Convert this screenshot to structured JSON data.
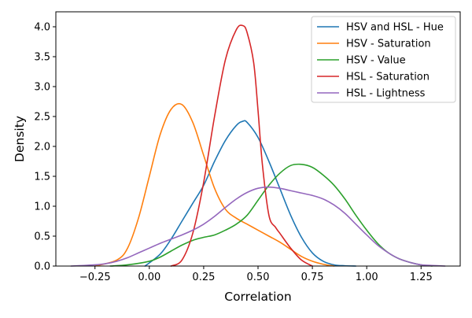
{
  "chart_data": {
    "type": "line",
    "xlabel": "Correlation",
    "ylabel": "Density",
    "xlim": [
      -0.43,
      1.43
    ],
    "ylim": [
      0,
      4.25
    ],
    "xticks": [
      "−0.25",
      "0.00",
      "0.25",
      "0.50",
      "0.75",
      "1.00",
      "1.25"
    ],
    "xtick_values": [
      -0.25,
      0,
      0.25,
      0.5,
      0.75,
      1.0,
      1.25
    ],
    "yticks": [
      "0.0",
      "0.5",
      "1.0",
      "1.5",
      "2.0",
      "2.5",
      "3.0",
      "3.5",
      "4.0"
    ],
    "ytick_values": [
      0,
      0.5,
      1,
      1.5,
      2,
      2.5,
      3,
      3.5,
      4
    ],
    "grid": false,
    "legend_position": "top-right",
    "series": [
      {
        "name": "HSV and HSL - Hue",
        "color": "#1f77b4",
        "x": [
          -0.02,
          0.05,
          0.1,
          0.15,
          0.2,
          0.25,
          0.3,
          0.35,
          0.4,
          0.43,
          0.45,
          0.5,
          0.55,
          0.6,
          0.65,
          0.7,
          0.75,
          0.8,
          0.85,
          0.9,
          0.95
        ],
        "y": [
          0.0,
          0.2,
          0.45,
          0.75,
          1.05,
          1.35,
          1.75,
          2.1,
          2.35,
          2.42,
          2.4,
          2.15,
          1.75,
          1.3,
          0.85,
          0.48,
          0.22,
          0.08,
          0.02,
          0.005,
          0.0
        ]
      },
      {
        "name": "HSV - Saturation",
        "color": "#ff7f0e",
        "x": [
          -0.25,
          -0.15,
          -0.1,
          -0.05,
          0.0,
          0.05,
          0.1,
          0.15,
          0.2,
          0.25,
          0.3,
          0.35,
          0.4,
          0.45,
          0.5,
          0.55,
          0.6,
          0.65,
          0.7,
          0.75,
          0.8,
          0.85
        ],
        "y": [
          0.0,
          0.1,
          0.3,
          0.8,
          1.5,
          2.2,
          2.62,
          2.7,
          2.4,
          1.85,
          1.3,
          0.95,
          0.8,
          0.7,
          0.6,
          0.5,
          0.4,
          0.28,
          0.16,
          0.08,
          0.03,
          0.0
        ]
      },
      {
        "name": "HSV - Value",
        "color": "#2ca02c",
        "x": [
          -0.18,
          -0.1,
          0.0,
          0.05,
          0.1,
          0.15,
          0.2,
          0.25,
          0.3,
          0.35,
          0.4,
          0.45,
          0.5,
          0.55,
          0.6,
          0.65,
          0.7,
          0.75,
          0.8,
          0.85,
          0.9,
          0.95,
          1.0,
          1.05,
          1.1,
          1.15,
          1.2,
          1.25,
          1.3
        ],
        "y": [
          0.0,
          0.02,
          0.08,
          0.15,
          0.25,
          0.35,
          0.43,
          0.48,
          0.52,
          0.6,
          0.7,
          0.85,
          1.1,
          1.35,
          1.55,
          1.68,
          1.7,
          1.65,
          1.52,
          1.35,
          1.12,
          0.85,
          0.6,
          0.38,
          0.22,
          0.12,
          0.06,
          0.02,
          0.0
        ]
      },
      {
        "name": "HSL - Saturation",
        "color": "#d62728",
        "x": [
          0.1,
          0.15,
          0.2,
          0.25,
          0.3,
          0.35,
          0.4,
          0.43,
          0.45,
          0.48,
          0.5,
          0.52,
          0.55,
          0.58,
          0.6,
          0.65,
          0.7,
          0.75
        ],
        "y": [
          0.0,
          0.1,
          0.55,
          1.4,
          2.5,
          3.45,
          3.95,
          4.02,
          3.9,
          3.4,
          2.6,
          1.7,
          0.85,
          0.65,
          0.55,
          0.3,
          0.1,
          0.0
        ]
      },
      {
        "name": "HSL - Lightness",
        "color": "#9467bd",
        "x": [
          -0.36,
          -0.3,
          -0.25,
          -0.2,
          -0.15,
          -0.1,
          -0.05,
          0.0,
          0.05,
          0.1,
          0.15,
          0.2,
          0.25,
          0.3,
          0.35,
          0.4,
          0.45,
          0.5,
          0.55,
          0.6,
          0.65,
          0.7,
          0.75,
          0.8,
          0.85,
          0.9,
          0.95,
          1.0,
          1.05,
          1.1,
          1.15,
          1.2,
          1.25,
          1.3,
          1.36
        ],
        "y": [
          0.0,
          0.01,
          0.02,
          0.04,
          0.08,
          0.14,
          0.22,
          0.3,
          0.38,
          0.45,
          0.52,
          0.6,
          0.7,
          0.83,
          0.98,
          1.12,
          1.23,
          1.3,
          1.32,
          1.3,
          1.26,
          1.22,
          1.18,
          1.12,
          1.02,
          0.88,
          0.7,
          0.52,
          0.35,
          0.22,
          0.12,
          0.06,
          0.02,
          0.01,
          0.0
        ]
      }
    ]
  }
}
